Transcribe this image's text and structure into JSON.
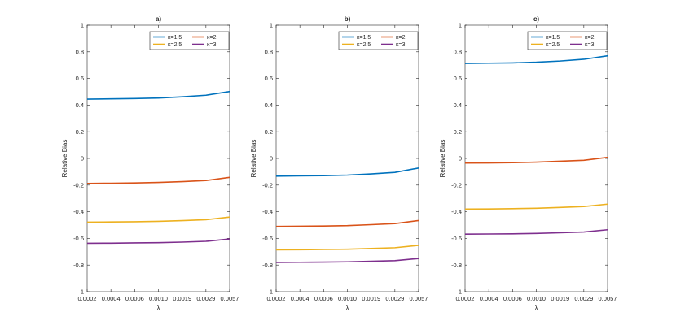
{
  "chart_data": [
    {
      "type": "line",
      "title": "a)",
      "xlabel": "λ",
      "ylabel": "Relative Bias",
      "ylim": [
        -1,
        1
      ],
      "xtick_labels": [
        "0.0002",
        "0.0004",
        "0.0006",
        "0.0010",
        "0.0019",
        "0.0029",
        "0.0057"
      ],
      "ytick_labels": [
        "-1",
        "-0.8",
        "-0.6",
        "-0.4",
        "-0.2",
        "0",
        "0.2",
        "0.4",
        "0.6",
        "0.8",
        "1"
      ],
      "series": [
        {
          "name": "κ=1.5",
          "color": "#0072BD",
          "values": [
            0.445,
            0.447,
            0.449,
            0.453,
            0.462,
            0.474,
            0.502
          ]
        },
        {
          "name": "κ=2",
          "color": "#D95319",
          "values": [
            -0.188,
            -0.186,
            -0.184,
            -0.18,
            -0.174,
            -0.166,
            -0.142
          ]
        },
        {
          "name": "κ=2.5",
          "color": "#EDB120",
          "values": [
            -0.478,
            -0.477,
            -0.475,
            -0.472,
            -0.467,
            -0.46,
            -0.44
          ]
        },
        {
          "name": "κ=3",
          "color": "#7E2F8E",
          "values": [
            -0.637,
            -0.636,
            -0.634,
            -0.632,
            -0.628,
            -0.622,
            -0.604
          ]
        }
      ]
    },
    {
      "type": "line",
      "title": "b)",
      "xlabel": "λ",
      "ylabel": "Relative Bias",
      "ylim": [
        -1,
        1
      ],
      "xtick_labels": [
        "0.0002",
        "0.0004",
        "0.0006",
        "0.0010",
        "0.0019",
        "0.0029",
        "0.0057"
      ],
      "ytick_labels": [
        "-1",
        "-0.8",
        "-0.6",
        "-0.4",
        "-0.2",
        "0",
        "0.2",
        "0.4",
        "0.6",
        "0.8",
        "1"
      ],
      "series": [
        {
          "name": "κ=1.5",
          "color": "#0072BD",
          "values": [
            -0.133,
            -0.131,
            -0.129,
            -0.125,
            -0.116,
            -0.105,
            -0.072
          ]
        },
        {
          "name": "κ=2",
          "color": "#D95319",
          "values": [
            -0.51,
            -0.509,
            -0.507,
            -0.504,
            -0.497,
            -0.489,
            -0.466
          ]
        },
        {
          "name": "κ=2.5",
          "color": "#EDB120",
          "values": [
            -0.686,
            -0.685,
            -0.683,
            -0.681,
            -0.676,
            -0.67,
            -0.652
          ]
        },
        {
          "name": "κ=3",
          "color": "#7E2F8E",
          "values": [
            -0.78,
            -0.779,
            -0.778,
            -0.776,
            -0.772,
            -0.767,
            -0.751
          ]
        }
      ]
    },
    {
      "type": "line",
      "title": "c)",
      "xlabel": "λ",
      "ylabel": "Relative Bias",
      "ylim": [
        -1,
        1
      ],
      "xtick_labels": [
        "0.0002",
        "0.0004",
        "0.0006",
        "0.0010",
        "0.0019",
        "0.0029",
        "0.0057"
      ],
      "ytick_labels": [
        "-1",
        "-0.8",
        "-0.6",
        "-0.4",
        "-0.2",
        "0",
        "0.2",
        "0.4",
        "0.6",
        "0.8",
        "1"
      ],
      "series": [
        {
          "name": "κ=1.5",
          "color": "#0072BD",
          "values": [
            0.713,
            0.715,
            0.717,
            0.722,
            0.731,
            0.744,
            0.77
          ]
        },
        {
          "name": "κ=2",
          "color": "#D95319",
          "values": [
            -0.035,
            -0.034,
            -0.032,
            -0.028,
            -0.021,
            -0.014,
            0.008
          ]
        },
        {
          "name": "κ=2.5",
          "color": "#EDB120",
          "values": [
            -0.38,
            -0.379,
            -0.377,
            -0.374,
            -0.368,
            -0.361,
            -0.343
          ]
        },
        {
          "name": "κ=3",
          "color": "#7E2F8E",
          "values": [
            -0.568,
            -0.567,
            -0.566,
            -0.563,
            -0.558,
            -0.552,
            -0.535
          ]
        }
      ]
    }
  ]
}
